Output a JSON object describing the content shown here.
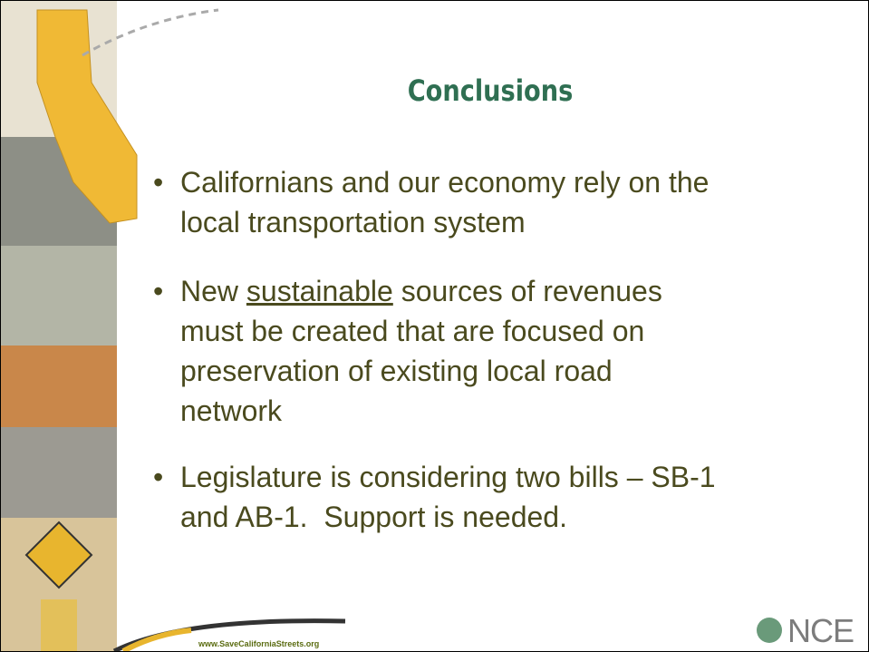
{
  "slide": {
    "title": "Conclusions",
    "bullets": [
      {
        "lines": [
          "Californians and our economy rely on the",
          "local transportation system"
        ]
      },
      {
        "first_line": {
          "before": "New ",
          "underlined": "sustainable",
          "after": " sources of revenues"
        },
        "lines": [
          "must be created that are focused on",
          "preservation of existing local road",
          "network"
        ]
      },
      {
        "lines": [
          "Legislature is considering two bills – SB-1",
          "and AB-1.  Support is needed."
        ]
      }
    ],
    "footer_url": "www.SaveCaliforniaStreets.org",
    "logo": "NCE"
  }
}
